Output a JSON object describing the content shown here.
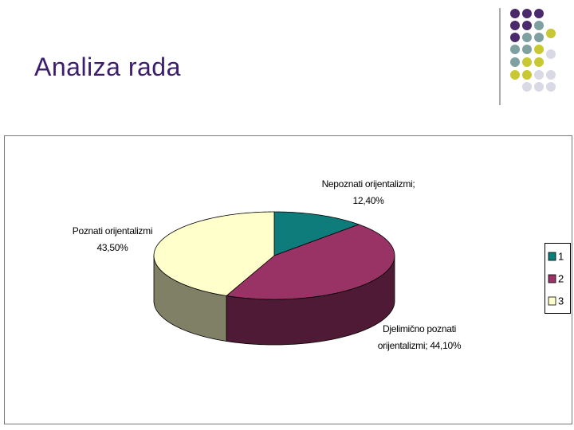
{
  "slide_title": "Analiza rada",
  "chart_data": {
    "type": "pie",
    "three_d": true,
    "categories": [
      "Nepoznati orijentalizmi;",
      "Djelimično poznati orijentalizmi;",
      "Poznati orijentalizmi"
    ],
    "values": [
      12.4,
      44.1,
      43.5
    ],
    "value_labels": [
      "12,40%",
      "44,10%",
      "43,50%"
    ],
    "colors": [
      "#0e7c7b",
      "#993366",
      "#ffffcc"
    ],
    "side_colors": [
      "#0a5655",
      "#4f1a35",
      "#808066"
    ],
    "legend": [
      "1",
      "2",
      "3"
    ],
    "legend_position": "right"
  }
}
